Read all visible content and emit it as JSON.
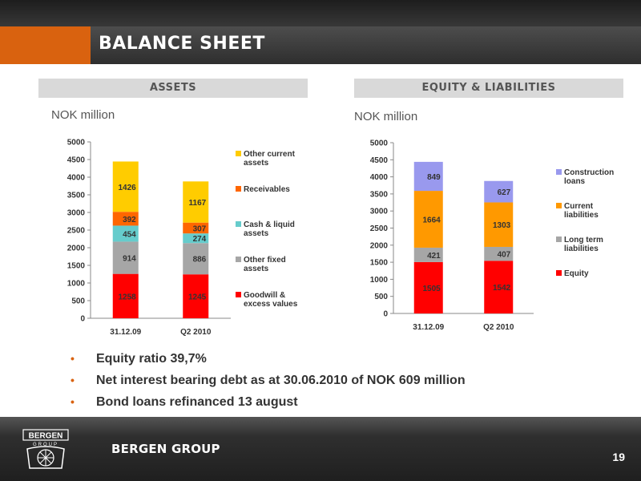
{
  "slide": {
    "title": "BALANCE SHEET",
    "page_number": "19",
    "footer_brand": "BERGEN GROUP",
    "logo_text_top": "BERGEN",
    "logo_text_bottom": "GROUP"
  },
  "colors": {
    "orange_accent": "#d9620f",
    "header_gray": "#d9d9d9",
    "other_current_assets": "#ffcc00",
    "receivables": "#ff6600",
    "cash": "#66cccc",
    "other_fixed": "#a6a6a6",
    "goodwill": "#ff0000",
    "construction_loans": "#9999ee",
    "current_liabilities": "#ff9900",
    "long_term": "#a6a6a6",
    "equity": "#ff0000"
  },
  "assets": {
    "header": "ASSETS",
    "unit": "NOK million"
  },
  "liabilities": {
    "header": "EQUITY & LIABILITIES",
    "unit": "NOK million"
  },
  "bullets": [
    "Equity ratio 39,7%",
    "Net interest bearing debt as at 30.06.2010 of NOK 609 million",
    "Bond loans refinanced 13 august"
  ],
  "chart_data": [
    {
      "type": "bar",
      "stacked": true,
      "categories": [
        "31.12.09",
        "Q2 2010"
      ],
      "ylim": [
        0,
        5000
      ],
      "yticks": [
        0,
        500,
        1000,
        1500,
        2000,
        2500,
        3000,
        3500,
        4000,
        4500,
        5000
      ],
      "legend_position": "right",
      "series": [
        {
          "name": "Goodwill & excess values",
          "color": "#ff0000",
          "values": [
            1258,
            1245
          ]
        },
        {
          "name": "Other fixed assets",
          "color": "#a6a6a6",
          "values": [
            914,
            886
          ]
        },
        {
          "name": "Cash & liquid assets",
          "color": "#66cccc",
          "values": [
            454,
            274
          ]
        },
        {
          "name": "Receivables",
          "color": "#ff6600",
          "values": [
            392,
            307
          ]
        },
        {
          "name": "Other current assets",
          "color": "#ffcc00",
          "values": [
            1426,
            1167
          ]
        }
      ]
    },
    {
      "type": "bar",
      "stacked": true,
      "categories": [
        "31.12.09",
        "Q2 2010"
      ],
      "ylim": [
        0,
        5000
      ],
      "yticks": [
        0,
        500,
        1000,
        1500,
        2000,
        2500,
        3000,
        3500,
        4000,
        4500,
        5000
      ],
      "legend_position": "right",
      "series": [
        {
          "name": "Equity",
          "color": "#ff0000",
          "values": [
            1505,
            1542
          ]
        },
        {
          "name": "Long term liabilities",
          "color": "#a6a6a6",
          "values": [
            421,
            407
          ]
        },
        {
          "name": "Current liabilities",
          "color": "#ff9900",
          "values": [
            1664,
            1303
          ]
        },
        {
          "name": "Construction loans",
          "color": "#9999ee",
          "values": [
            849,
            627
          ]
        }
      ]
    }
  ]
}
